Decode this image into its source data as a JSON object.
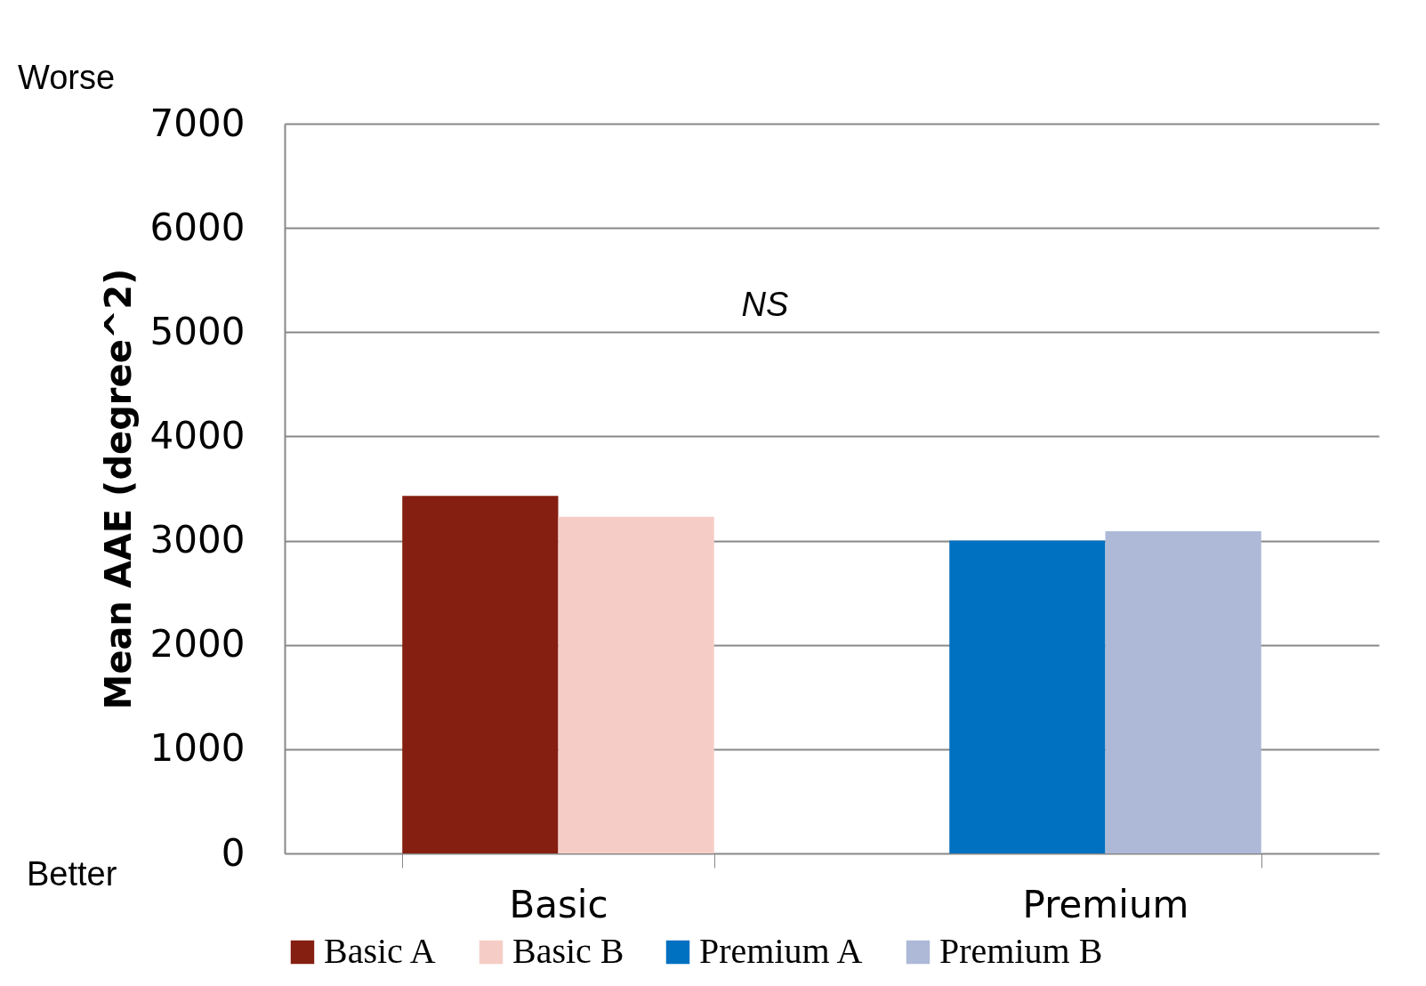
{
  "chart_data": {
    "type": "bar",
    "ylabel": "Mean AAE (degree^2)",
    "categories": [
      "Basic",
      "Premium"
    ],
    "series": [
      {
        "name": "Basic A",
        "color": "#841f11",
        "values": [
          3430,
          null
        ]
      },
      {
        "name": "Basic B",
        "color": "#f6cdc6",
        "values": [
          3230,
          null
        ]
      },
      {
        "name": "Premium A",
        "color": "#0070c0",
        "values": [
          null,
          3000
        ]
      },
      {
        "name": "Premium B",
        "color": "#adb9d6",
        "values": [
          null,
          3090
        ]
      }
    ],
    "ylim": [
      0,
      7000
    ],
    "yticks": [
      0,
      1000,
      2000,
      3000,
      4000,
      5000,
      6000,
      7000
    ],
    "grid": "y",
    "legend": "bottom",
    "annotations": [
      "Worse",
      "Better",
      "NS"
    ]
  }
}
